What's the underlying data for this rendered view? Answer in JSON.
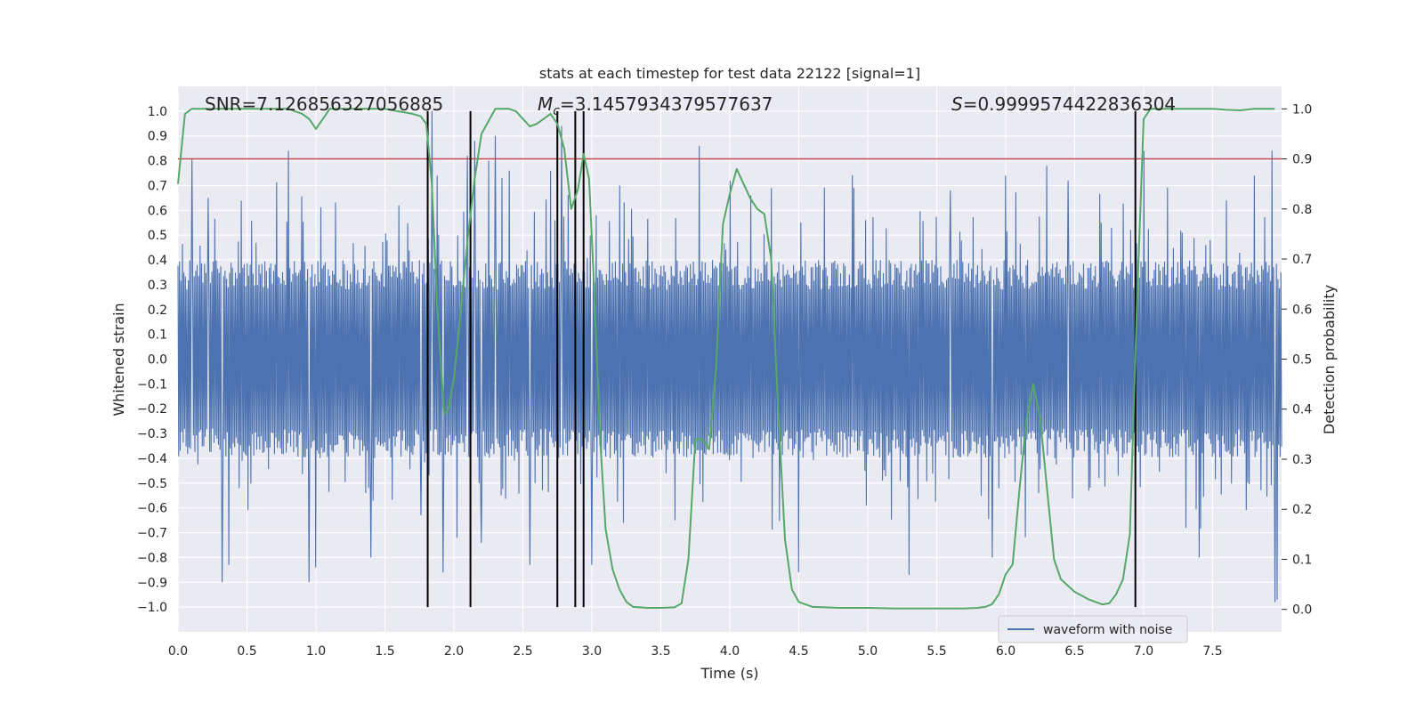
{
  "chart_data": {
    "type": "line",
    "title": "stats at each timestep for test data 22122 [signal=1]",
    "xlabel": "Time (s)",
    "ylabel": "Whitened strain",
    "y2label": "Detection probability",
    "xlim": [
      0.0,
      8.0
    ],
    "ylim": [
      -1.1,
      1.1
    ],
    "y2lim": [
      -0.045,
      1.045
    ],
    "xticks": [
      0.0,
      0.5,
      1.0,
      1.5,
      2.0,
      2.5,
      3.0,
      3.5,
      4.0,
      4.5,
      5.0,
      5.5,
      6.0,
      6.5,
      7.0,
      7.5
    ],
    "yticks": [
      -1.0,
      -0.9,
      -0.8,
      -0.7,
      -0.6,
      -0.5,
      -0.4,
      -0.3,
      -0.2,
      -0.1,
      0.0,
      0.1,
      0.2,
      0.3,
      0.4,
      0.5,
      0.6,
      0.7,
      0.8,
      0.9,
      1.0
    ],
    "y2ticks": [
      0.0,
      0.1,
      0.2,
      0.3,
      0.4,
      0.5,
      0.6,
      0.7,
      0.8,
      0.9,
      1.0
    ],
    "annotations": {
      "snr": "SNR=7.126856327056885",
      "mc_symbol": "M",
      "mc_sub": "c",
      "mc_value": "=3.1457934379577637",
      "s_symbol": "S",
      "s_value": "=0.9999574422836304"
    },
    "threshold": {
      "y2": 0.9,
      "color": "#c44e52"
    },
    "vertical_lines": [
      1.81,
      2.12,
      2.75,
      2.88,
      2.94,
      6.94
    ],
    "vertical_line_range": [
      -1.0,
      1.0
    ],
    "waveform": {
      "name": "waveform with noise",
      "color": "#4c72b0",
      "band": 0.4,
      "n_samples": 1500,
      "peaks": [
        [
          0.1,
          0.81
        ],
        [
          0.22,
          0.65
        ],
        [
          0.32,
          -0.9
        ],
        [
          0.37,
          -0.83
        ],
        [
          0.46,
          0.64
        ],
        [
          0.8,
          0.84
        ],
        [
          0.95,
          -0.9
        ],
        [
          1.0,
          -0.84
        ],
        [
          1.4,
          -0.8
        ],
        [
          1.6,
          0.62
        ],
        [
          1.76,
          -0.63
        ],
        [
          1.84,
          1.0
        ],
        [
          1.88,
          0.74
        ],
        [
          1.92,
          -0.86
        ],
        [
          2.1,
          0.82
        ],
        [
          2.15,
          0.88
        ],
        [
          2.2,
          -0.74
        ],
        [
          2.25,
          0.8
        ],
        [
          2.3,
          0.9
        ],
        [
          2.4,
          0.76
        ],
        [
          2.55,
          -0.83
        ],
        [
          2.7,
          0.76
        ],
        [
          2.78,
          0.94
        ],
        [
          3.0,
          -0.83
        ],
        [
          3.2,
          0.7
        ],
        [
          3.6,
          -0.65
        ],
        [
          3.78,
          0.86
        ],
        [
          4.0,
          0.72
        ],
        [
          4.3,
          0.69
        ],
        [
          4.5,
          -0.86
        ],
        [
          4.9,
          0.69
        ],
        [
          5.3,
          -0.87
        ],
        [
          5.6,
          0.68
        ],
        [
          5.9,
          -0.8
        ],
        [
          6.0,
          0.74
        ],
        [
          6.3,
          0.78
        ],
        [
          6.45,
          0.72
        ],
        [
          7.0,
          0.84
        ],
        [
          7.4,
          -0.8
        ],
        [
          7.6,
          0.64
        ],
        [
          7.8,
          0.74
        ],
        [
          7.93,
          0.84
        ],
        [
          7.95,
          -0.98
        ],
        [
          7.97,
          -0.97
        ]
      ]
    },
    "probability": {
      "name": "Detection probability",
      "color": "#55a868",
      "x": [
        0.0,
        0.05,
        0.1,
        0.2,
        0.4,
        0.6,
        0.8,
        0.9,
        0.95,
        1.0,
        1.05,
        1.1,
        1.3,
        1.5,
        1.6,
        1.7,
        1.76,
        1.8,
        1.84,
        1.88,
        1.93,
        1.96,
        2.0,
        2.1,
        2.15,
        2.2,
        2.3,
        2.4,
        2.45,
        2.5,
        2.55,
        2.6,
        2.65,
        2.7,
        2.75,
        2.8,
        2.85,
        2.9,
        2.94,
        2.98,
        3.02,
        3.06,
        3.1,
        3.15,
        3.2,
        3.25,
        3.3,
        3.4,
        3.5,
        3.6,
        3.65,
        3.7,
        3.75,
        3.8,
        3.85,
        3.9,
        3.95,
        4.0,
        4.05,
        4.1,
        4.15,
        4.2,
        4.25,
        4.3,
        4.35,
        4.4,
        4.45,
        4.5,
        4.6,
        4.8,
        5.0,
        5.2,
        5.5,
        5.7,
        5.8,
        5.85,
        5.9,
        5.95,
        6.0,
        6.05,
        6.1,
        6.15,
        6.2,
        6.25,
        6.3,
        6.35,
        6.4,
        6.5,
        6.6,
        6.65,
        6.7,
        6.75,
        6.8,
        6.85,
        6.9,
        6.95,
        7.0,
        7.05,
        7.1,
        7.2,
        7.3,
        7.4,
        7.5,
        7.6,
        7.7,
        7.8,
        7.95
      ],
      "y": [
        0.85,
        0.99,
        1.0,
        1.0,
        1.0,
        1.0,
        1.0,
        0.99,
        0.98,
        0.96,
        0.98,
        1.0,
        1.0,
        1.0,
        0.995,
        0.99,
        0.985,
        0.97,
        0.85,
        0.6,
        0.39,
        0.4,
        0.46,
        0.74,
        0.86,
        0.95,
        1.0,
        1.0,
        0.995,
        0.98,
        0.965,
        0.97,
        0.98,
        0.99,
        0.97,
        0.92,
        0.8,
        0.84,
        0.91,
        0.86,
        0.62,
        0.34,
        0.16,
        0.08,
        0.04,
        0.015,
        0.005,
        0.003,
        0.003,
        0.004,
        0.012,
        0.1,
        0.34,
        0.34,
        0.32,
        0.48,
        0.77,
        0.83,
        0.88,
        0.85,
        0.82,
        0.8,
        0.79,
        0.7,
        0.4,
        0.14,
        0.04,
        0.015,
        0.005,
        0.003,
        0.003,
        0.002,
        0.002,
        0.002,
        0.003,
        0.005,
        0.01,
        0.03,
        0.07,
        0.09,
        0.24,
        0.38,
        0.45,
        0.38,
        0.24,
        0.1,
        0.06,
        0.035,
        0.02,
        0.015,
        0.01,
        0.012,
        0.03,
        0.06,
        0.15,
        0.6,
        0.98,
        1.0,
        1.0,
        1.0,
        1.0,
        1.0,
        1.0,
        0.998,
        0.997,
        1.0,
        1.0
      ]
    },
    "legend": {
      "label": "waveform with noise",
      "placement": "lower-right"
    }
  }
}
